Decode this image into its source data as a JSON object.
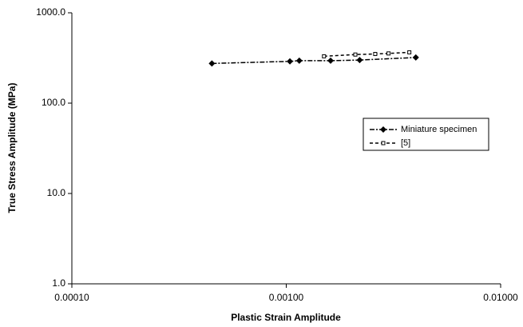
{
  "chart_data": {
    "type": "scatter",
    "x_label": "Plastic Strain Amplitude",
    "y_label": "True Stress Amplitude (MPa)",
    "log_x": true,
    "log_y": true,
    "legend": "right",
    "xlim": [
      0.0001,
      0.01
    ],
    "ylim": [
      1,
      1000
    ],
    "xticks": [
      {
        "value": 0.0001,
        "label": "0.00010"
      },
      {
        "value": 0.001,
        "label": "0.00100"
      },
      {
        "value": 0.01,
        "label": "0.01000"
      }
    ],
    "yticks": [
      {
        "value": 1,
        "label": "1.0"
      },
      {
        "value": 10,
        "label": "10.0"
      },
      {
        "value": 100,
        "label": "100.0"
      },
      {
        "value": 1000,
        "label": "1000.0"
      }
    ],
    "series": [
      {
        "name": "Miniature specimen",
        "color": "#000000",
        "marker": "diamond",
        "line": "dash-dot",
        "x": [
          0.00045,
          0.00104,
          0.00115,
          0.00161,
          0.0022,
          0.00402
        ],
        "values": [
          275,
          290,
          295,
          295,
          300,
          320
        ]
      },
      {
        "name": "[5]",
        "color": "#000000",
        "marker": "square-open",
        "line": "dashed",
        "x": [
          0.0015,
          0.0021,
          0.0026,
          0.003,
          0.00375
        ],
        "values": [
          330,
          345,
          350,
          355,
          365
        ]
      }
    ]
  }
}
